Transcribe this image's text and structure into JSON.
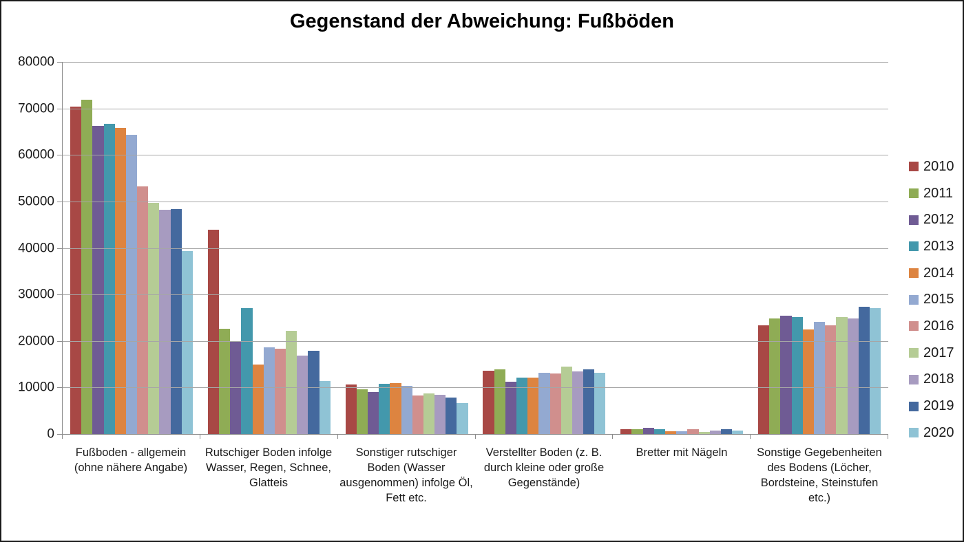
{
  "chart_data": {
    "type": "bar",
    "title": "Gegenstand der Abweichung: Fußböden",
    "categories": [
      "Fußboden - allgemein (ohne nähere Angabe)",
      "Rutschiger Boden infolge Wasser, Regen, Schnee, Glatteis",
      "Sonstiger rutschiger Boden (Wasser ausgenommen) infolge Öl, Fett etc.",
      "Verstellter Boden (z. B. durch kleine oder große Gegenstände)",
      "Bretter mit Nägeln",
      "Sonstige Gegebenheiten des Bodens (Löcher, Bordsteine, Steinstufen etc.)"
    ],
    "series": [
      {
        "name": "2010",
        "color": "#A84845",
        "values": [
          70400,
          43900,
          10600,
          13600,
          1100,
          23400
        ]
      },
      {
        "name": "2011",
        "color": "#8FAC55",
        "values": [
          71800,
          22700,
          9600,
          13900,
          1000,
          24800
        ]
      },
      {
        "name": "2012",
        "color": "#6F5B94",
        "values": [
          66300,
          19800,
          9000,
          11200,
          1300,
          25500
        ]
      },
      {
        "name": "2013",
        "color": "#4398AC",
        "values": [
          66700,
          27000,
          10800,
          12100,
          1100,
          25200
        ]
      },
      {
        "name": "2014",
        "color": "#DD8440",
        "values": [
          65800,
          15000,
          11000,
          12100,
          650,
          22500
        ]
      },
      {
        "name": "2015",
        "color": "#93A9D1",
        "values": [
          64300,
          18600,
          10400,
          13100,
          550,
          24100
        ]
      },
      {
        "name": "2016",
        "color": "#D08F8D",
        "values": [
          53200,
          18400,
          8300,
          13000,
          1100,
          23300
        ]
      },
      {
        "name": "2017",
        "color": "#B5CC95",
        "values": [
          49700,
          22200,
          8800,
          14500,
          500,
          25200
        ]
      },
      {
        "name": "2018",
        "color": "#A79BC0",
        "values": [
          48200,
          16900,
          8400,
          13400,
          800,
          24900
        ]
      },
      {
        "name": "2019",
        "color": "#44699E",
        "values": [
          48300,
          17900,
          7800,
          13900,
          1100,
          27400
        ]
      },
      {
        "name": "2020",
        "color": "#8FC3D5",
        "values": [
          39400,
          11400,
          6700,
          13200,
          750,
          27100
        ]
      }
    ],
    "ylim": [
      0,
      80000
    ],
    "ytick_interval": 10000,
    "grid": true,
    "legend_position": "right",
    "gridline_color": "#a6a6a6",
    "axis_color": "#8c8c8c"
  }
}
